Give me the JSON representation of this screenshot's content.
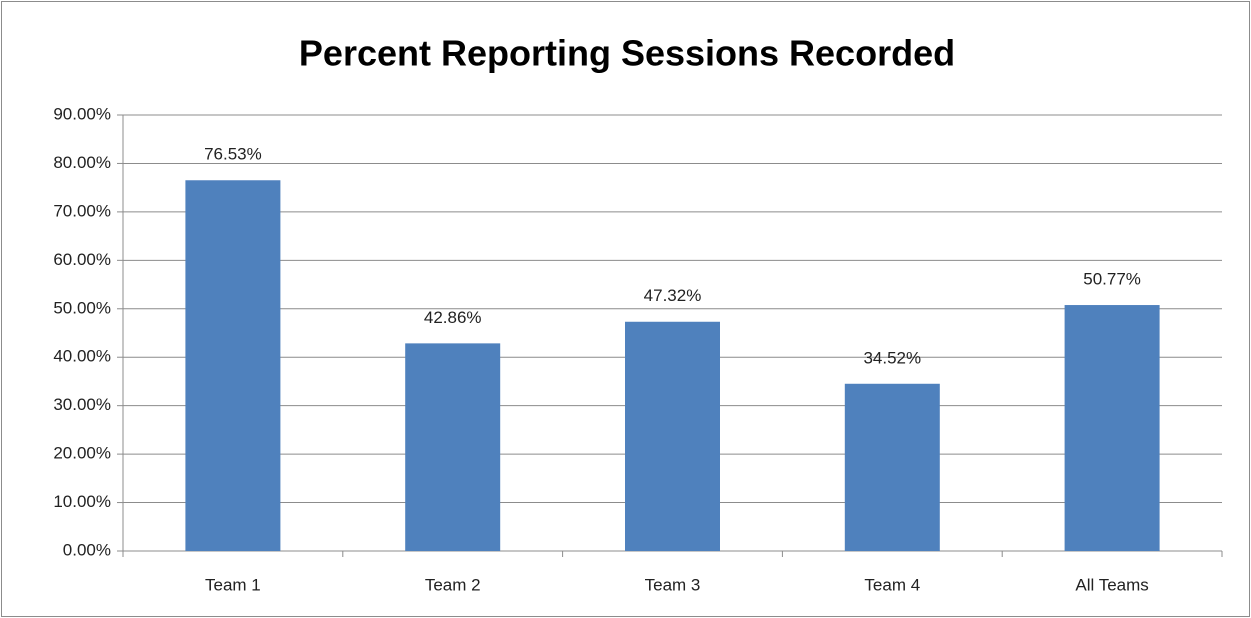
{
  "chart_data": {
    "type": "bar",
    "title": "Percent Reporting Sessions Recorded",
    "categories": [
      "Team 1",
      "Team 2",
      "Team 3",
      "Team 4",
      "All Teams"
    ],
    "values": [
      76.53,
      42.86,
      47.32,
      34.52,
      50.77
    ],
    "value_labels": [
      "76.53%",
      "42.86%",
      "47.32%",
      "34.52%",
      "50.77%"
    ],
    "color": "#4f81bd",
    "ylim": [
      0,
      90
    ],
    "yticks": [
      {
        "value": 0,
        "label": "0.00%"
      },
      {
        "value": 10,
        "label": "10.00%"
      },
      {
        "value": 20,
        "label": "20.00%"
      },
      {
        "value": 30,
        "label": "30.00%"
      },
      {
        "value": 40,
        "label": "40.00%"
      },
      {
        "value": 50,
        "label": "50.00%"
      },
      {
        "value": 60,
        "label": "60.00%"
      },
      {
        "value": 70,
        "label": "70.00%"
      },
      {
        "value": 80,
        "label": "80.00%"
      },
      {
        "value": 90,
        "label": "90.00%"
      }
    ],
    "grid": true
  }
}
